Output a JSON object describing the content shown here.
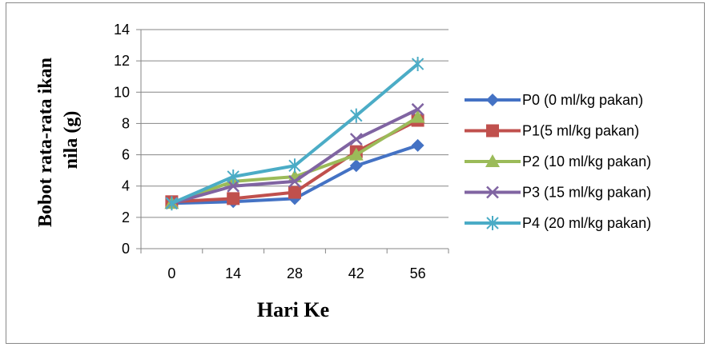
{
  "chart_data": {
    "type": "line",
    "x": [
      0,
      14,
      28,
      42,
      56
    ],
    "categories": [
      "0",
      "14",
      "28",
      "42",
      "56"
    ],
    "xlabel": "Hari Ke",
    "ylabel_line1": "Bobot rata-rata ikan",
    "ylabel_line2": "nila (g)",
    "ylim": [
      0,
      14
    ],
    "yticks": [
      0,
      2,
      4,
      6,
      8,
      10,
      12,
      14
    ],
    "grid": "horizontal",
    "legend_position": "right",
    "series": [
      {
        "name": "P0 (0 ml/kg pakan)",
        "values": [
          2.9,
          3.0,
          3.2,
          5.3,
          6.6
        ],
        "color": "#4472C4",
        "marker": "diamond"
      },
      {
        "name": "P1(5 ml/kg pakan)",
        "values": [
          3.0,
          3.2,
          3.6,
          6.2,
          8.2
        ],
        "color": "#C0504D",
        "marker": "square"
      },
      {
        "name": "P2 (10 ml/kg pakan)",
        "values": [
          2.9,
          4.3,
          4.6,
          6.0,
          8.4
        ],
        "color": "#9BBB59",
        "marker": "triangle"
      },
      {
        "name": "P3 (15 ml/kg pakan)",
        "values": [
          2.9,
          4.0,
          4.3,
          7.0,
          8.9
        ],
        "color": "#8064A2",
        "marker": "x"
      },
      {
        "name": "P4 (20 ml/kg pakan)",
        "values": [
          2.9,
          4.6,
          5.3,
          8.5,
          11.8
        ],
        "color": "#4BACC6",
        "marker": "star"
      }
    ]
  }
}
